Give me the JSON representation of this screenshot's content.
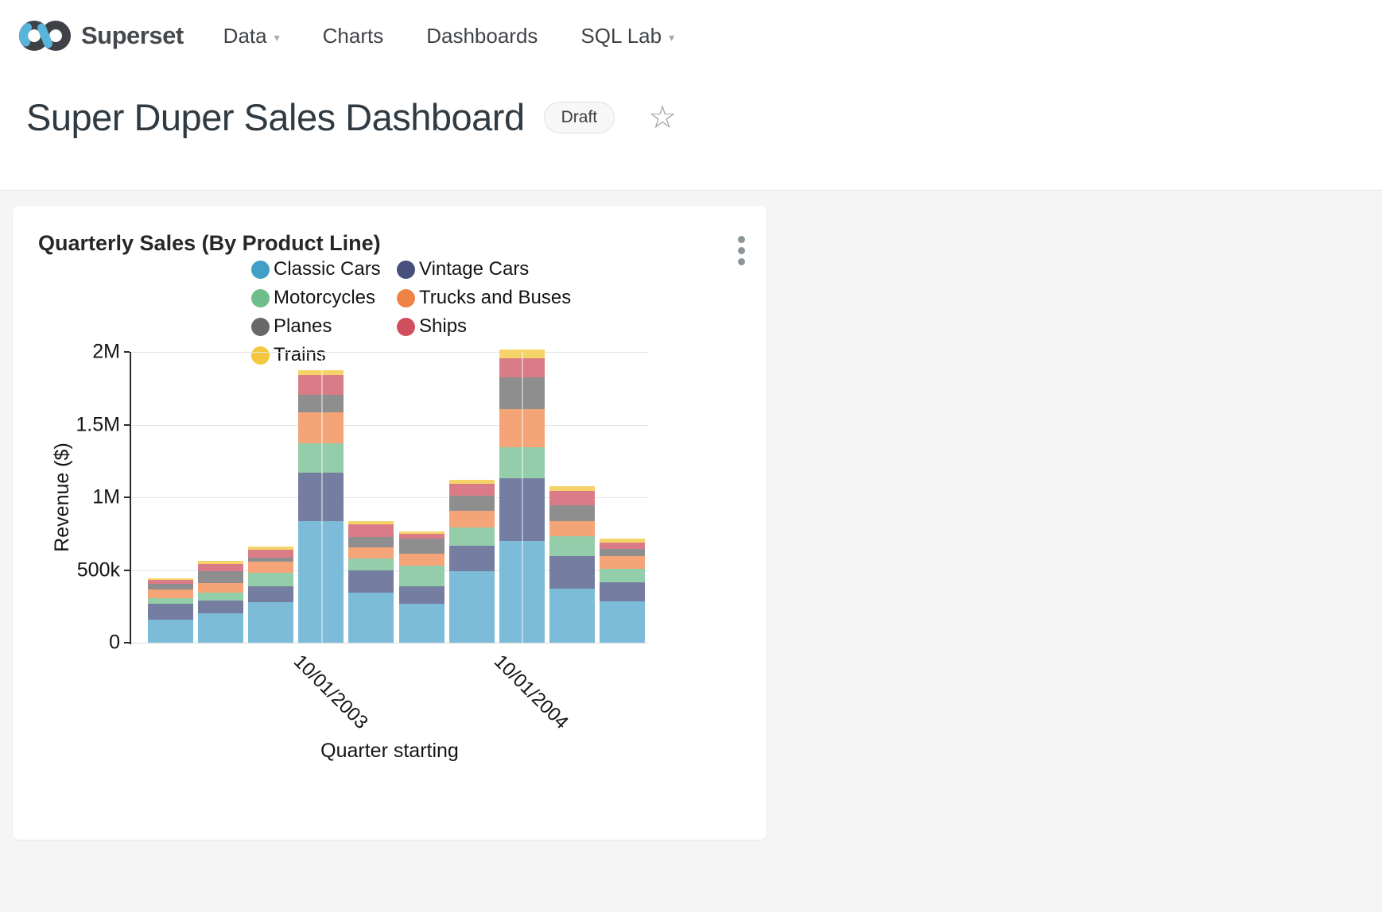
{
  "nav": {
    "brand": "Superset",
    "items": [
      {
        "label": "Data",
        "has_caret": true
      },
      {
        "label": "Charts",
        "has_caret": false
      },
      {
        "label": "Dashboards",
        "has_caret": false
      },
      {
        "label": "SQL Lab",
        "has_caret": true
      }
    ]
  },
  "header": {
    "title": "Super Duper Sales Dashboard",
    "status_badge": "Draft",
    "favorite_icon": "star-outline"
  },
  "card": {
    "title": "Quarterly Sales (By Product Line)",
    "menu_icon": "kebab-vertical"
  },
  "chart_data": {
    "type": "bar",
    "stacked": true,
    "title": "Quarterly Sales (By Product Line)",
    "xlabel": "Quarter starting",
    "ylabel": "Revenue ($)",
    "ylim": [
      0,
      2000000
    ],
    "y_ticks": [
      "0",
      "500k",
      "1M",
      "1.5M",
      "2M"
    ],
    "grid": true,
    "legend_position": "top",
    "legend_columns": [
      [
        0,
        2,
        4,
        6
      ],
      [
        1,
        3,
        5
      ]
    ],
    "x_ticks": [
      {
        "label": "10/01/2003",
        "bar_index": 3
      },
      {
        "label": "10/01/2004",
        "bar_index": 7
      }
    ],
    "bar_count": 10,
    "series": [
      {
        "name": "Classic Cars",
        "color": "#41A0C7",
        "bar_color": "#7CBCD8",
        "values": [
          160000,
          200000,
          279000,
          836000,
          343000,
          270000,
          490000,
          698000,
          373000,
          284000
        ]
      },
      {
        "name": "Vintage Cars",
        "color": "#474F7D",
        "bar_color": "#757DA1",
        "values": [
          110000,
          92000,
          110000,
          334000,
          156000,
          120000,
          175000,
          435000,
          224000,
          129000
        ]
      },
      {
        "name": "Motorcycles",
        "color": "#6EBE8B",
        "bar_color": "#94CDAA",
        "values": [
          37000,
          55000,
          92000,
          202000,
          83000,
          138000,
          129000,
          213000,
          138000,
          95000
        ]
      },
      {
        "name": "Trucks and Buses",
        "color": "#EF8344",
        "bar_color": "#F5A477",
        "values": [
          58000,
          64000,
          77000,
          211000,
          73000,
          83000,
          116000,
          261000,
          101000,
          88000
        ]
      },
      {
        "name": "Planes",
        "color": "#686868",
        "bar_color": "#8E8E8E",
        "values": [
          37000,
          79000,
          28000,
          120000,
          73000,
          105000,
          99000,
          217000,
          110000,
          51000
        ]
      },
      {
        "name": "Ships",
        "color": "#D04F5C",
        "bar_color": "#DA7C87",
        "values": [
          29000,
          51000,
          55000,
          138000,
          86000,
          33000,
          84000,
          132000,
          96000,
          44000
        ]
      },
      {
        "name": "Trains",
        "color": "#F3C73E",
        "bar_color": "#F6D368",
        "values": [
          13000,
          22000,
          19000,
          33000,
          24000,
          18000,
          26000,
          59000,
          36000,
          24000
        ]
      }
    ]
  }
}
